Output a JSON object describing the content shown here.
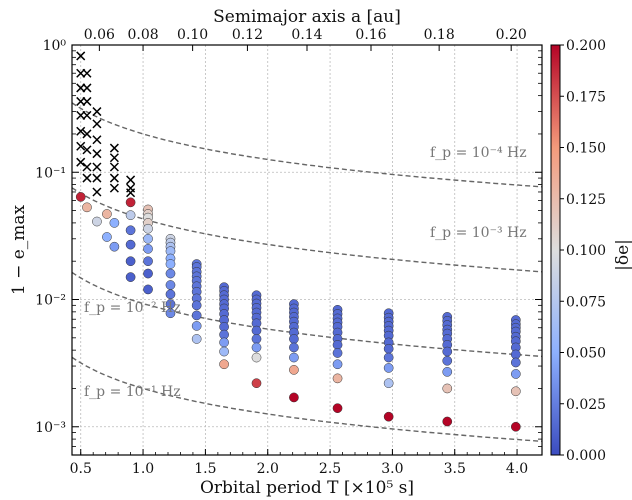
{
  "chart_data": {
    "type": "scatter",
    "xlabel": "Orbital period T [×10⁵ s]",
    "x2label": "Semimajor axis a [au]",
    "ylabel": "1 − e_max",
    "colorbar_label": "|δe|",
    "xlim": [
      0.43,
      4.2
    ],
    "ylim": [
      0.0006,
      1.0
    ],
    "yscale": "log",
    "grid": true,
    "x_ticks": [
      "0.5",
      "1.0",
      "1.5",
      "2.0",
      "2.5",
      "3.0",
      "3.5",
      "4.0"
    ],
    "x2_ticks": [
      "0.06",
      "0.08",
      "0.10",
      "0.12",
      "0.14",
      "0.16",
      "0.18",
      "0.20"
    ],
    "y_ticks": [
      "10⁰",
      "10⁻¹",
      "10⁻²",
      "10⁻³"
    ],
    "colorbar": {
      "range": [
        0.0,
        0.2
      ],
      "ticks": [
        "0.000",
        "0.025",
        "0.050",
        "0.075",
        "0.100",
        "0.125",
        "0.150",
        "0.175",
        "0.200"
      ],
      "colors": {
        "low": "#3b4cc0",
        "mid": "#dddddd",
        "high": "#b40426"
      }
    },
    "frequency_lines": [
      {
        "label": "f_p = 10⁻⁴ Hz",
        "y_at_T1": 0.2
      },
      {
        "label": "f_p = 10⁻³ Hz",
        "y_at_T1": 0.043
      },
      {
        "label": "f_p = 10⁻² Hz",
        "y_at_T1": 0.0093
      },
      {
        "label": "f_p = 10⁻¹ Hz",
        "y_at_T1": 0.002
      }
    ],
    "annotations": [
      "f_p = 10⁻⁴ Hz",
      "f_p = 10⁻³ Hz",
      "f_p = 10⁻² Hz",
      "f_p = 10⁻¹ Hz"
    ],
    "crosses": [
      {
        "x": 0.5,
        "y": [
          0.82,
          0.6,
          0.46,
          0.36,
          0.28,
          0.21,
          0.16,
          0.12
        ]
      },
      {
        "x": 0.55,
        "y": [
          0.6,
          0.46,
          0.36,
          0.28,
          0.2,
          0.15,
          0.11,
          0.09
        ]
      },
      {
        "x": 0.63,
        "y": [
          0.3,
          0.24,
          0.18,
          0.14,
          0.11,
          0.09,
          0.07
        ]
      },
      {
        "x": 0.77,
        "y": [
          0.155,
          0.13,
          0.11,
          0.09,
          0.075
        ]
      },
      {
        "x": 0.9,
        "y": [
          0.087,
          0.075,
          0.069
        ]
      }
    ],
    "points": [
      {
        "x": 0.5,
        "y": [
          0.064
        ],
        "de": [
          0.19
        ]
      },
      {
        "x": 0.55,
        "y": [
          0.053
        ],
        "de": [
          0.13
        ]
      },
      {
        "x": 0.63,
        "y": [
          0.041
        ],
        "de": [
          0.09
        ]
      },
      {
        "x": 0.71,
        "y": [
          0.047,
          0.031
        ],
        "de": [
          0.13,
          0.05
        ]
      },
      {
        "x": 0.77,
        "y": [
          0.04,
          0.026
        ],
        "de": [
          0.05,
          0.04
        ]
      },
      {
        "x": 0.9,
        "y": [
          0.058,
          0.046,
          0.035,
          0.027,
          0.02,
          0.015
        ],
        "de": [
          0.19,
          0.08,
          0.02,
          0.015,
          0.01,
          0.01
        ]
      },
      {
        "x": 1.04,
        "y": [
          0.051,
          0.047,
          0.044,
          0.04,
          0.036,
          0.03,
          0.025,
          0.02,
          0.016,
          0.012
        ],
        "de": [
          0.12,
          0.11,
          0.1,
          0.11,
          0.09,
          0.06,
          0.04,
          0.02,
          0.01,
          0.01
        ]
      },
      {
        "x": 1.22,
        "y": [
          0.03,
          0.028,
          0.026,
          0.024,
          0.021,
          0.019,
          0.016,
          0.013,
          0.011,
          0.0092,
          0.0078
        ],
        "de": [
          0.09,
          0.08,
          0.07,
          0.06,
          0.05,
          0.05,
          0.03,
          0.03,
          0.02,
          0.02,
          0.03
        ]
      },
      {
        "x": 1.43,
        "y": [
          0.019,
          0.018,
          0.0165,
          0.0152,
          0.014,
          0.0127,
          0.0115,
          0.0102,
          0.009,
          0.0075,
          0.0062,
          0.0049
        ],
        "de": [
          0.02,
          0.02,
          0.02,
          0.02,
          0.02,
          0.02,
          0.02,
          0.02,
          0.02,
          0.02,
          0.04,
          0.07
        ]
      },
      {
        "x": 1.65,
        "y": [
          0.0125,
          0.0117,
          0.0108,
          0.01,
          0.0092,
          0.0085,
          0.0077,
          0.0069,
          0.0061,
          0.0053,
          0.0046,
          0.0039,
          0.0031
        ],
        "de": [
          0.015,
          0.015,
          0.015,
          0.015,
          0.015,
          0.015,
          0.015,
          0.015,
          0.015,
          0.02,
          0.04,
          0.06,
          0.14
        ]
      },
      {
        "x": 1.91,
        "y": [
          0.0108,
          0.01,
          0.0093,
          0.0086,
          0.0079,
          0.0072,
          0.0065,
          0.0057,
          0.0049,
          0.0042,
          0.0035,
          0.0022
        ],
        "de": [
          0.015,
          0.015,
          0.015,
          0.015,
          0.015,
          0.015,
          0.015,
          0.015,
          0.02,
          0.04,
          0.1,
          0.18
        ]
      },
      {
        "x": 2.21,
        "y": [
          0.0092,
          0.0085,
          0.0079,
          0.0073,
          0.0067,
          0.0061,
          0.0055,
          0.0049,
          0.0042,
          0.0035,
          0.0028,
          0.0017
        ],
        "de": [
          0.015,
          0.015,
          0.015,
          0.015,
          0.015,
          0.015,
          0.015,
          0.015,
          0.02,
          0.04,
          0.14,
          0.2
        ]
      },
      {
        "x": 2.56,
        "y": [
          0.0083,
          0.0077,
          0.0071,
          0.0066,
          0.0061,
          0.0055,
          0.0049,
          0.0044,
          0.0038,
          0.0031,
          0.0024,
          0.0014
        ],
        "de": [
          0.015,
          0.015,
          0.015,
          0.015,
          0.015,
          0.015,
          0.015,
          0.015,
          0.02,
          0.04,
          0.13,
          0.2
        ]
      },
      {
        "x": 2.97,
        "y": [
          0.0078,
          0.0072,
          0.0067,
          0.0062,
          0.0057,
          0.0052,
          0.0046,
          0.0041,
          0.0035,
          0.0029,
          0.0022,
          0.0012
        ],
        "de": [
          0.015,
          0.015,
          0.015,
          0.015,
          0.015,
          0.015,
          0.015,
          0.015,
          0.02,
          0.04,
          0.07,
          0.2
        ]
      },
      {
        "x": 3.44,
        "y": [
          0.0073,
          0.0068,
          0.0063,
          0.0058,
          0.0054,
          0.0049,
          0.0044,
          0.0039,
          0.0033,
          0.0027,
          0.002,
          0.0011
        ],
        "de": [
          0.015,
          0.015,
          0.015,
          0.015,
          0.015,
          0.015,
          0.015,
          0.015,
          0.02,
          0.04,
          0.12,
          0.2
        ]
      },
      {
        "x": 3.99,
        "y": [
          0.0069,
          0.0064,
          0.006,
          0.0056,
          0.0051,
          0.0047,
          0.0042,
          0.0037,
          0.0032,
          0.0026,
          0.0019,
          0.001
        ],
        "de": [
          0.015,
          0.015,
          0.015,
          0.015,
          0.015,
          0.015,
          0.015,
          0.015,
          0.02,
          0.04,
          0.12,
          0.2
        ]
      }
    ]
  }
}
